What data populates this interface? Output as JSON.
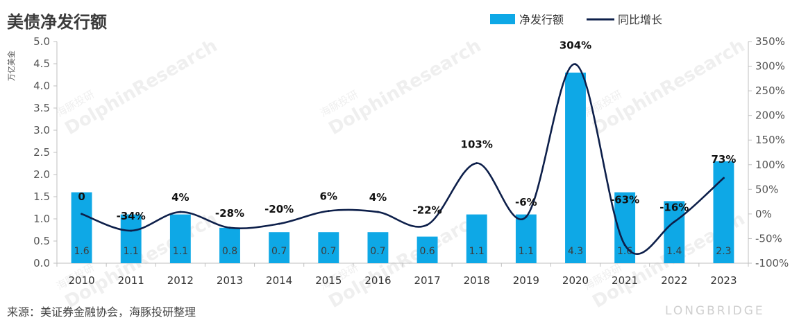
{
  "chart_data": {
    "type": "bar+line",
    "title": "美债净发行额",
    "ylabel": "万亿美金",
    "categories": [
      "2010",
      "2011",
      "2012",
      "2013",
      "2014",
      "2015",
      "2016",
      "2017",
      "2018",
      "2019",
      "2020",
      "2021",
      "2022",
      "2023"
    ],
    "series": [
      {
        "name": "净发行额",
        "type": "bar",
        "color": "#0ea8e6",
        "values": [
          1.6,
          1.1,
          1.1,
          0.8,
          0.7,
          0.7,
          0.7,
          0.6,
          1.1,
          1.1,
          4.3,
          1.6,
          1.4,
          2.3
        ],
        "labels": [
          "1.6",
          "1.1",
          "1.1",
          "0.8",
          "0.7",
          "0.7",
          "0.7",
          "0.6",
          "1.1",
          "1.1",
          "4.3",
          "1.6",
          "1.4",
          "2.3"
        ]
      },
      {
        "name": "同比增长",
        "type": "line",
        "color": "#0d1f4a",
        "values": [
          0,
          -34,
          4,
          -28,
          -20,
          6,
          4,
          -22,
          103,
          -6,
          304,
          -63,
          -16,
          73
        ],
        "labels": [
          "0",
          "-34%",
          "4%",
          "-28%",
          "-20%",
          "6%",
          "4%",
          "-22%",
          "103%",
          "-6%",
          "304%",
          "-63%",
          "-16%",
          "73%"
        ]
      }
    ],
    "y_left": {
      "ylim": [
        0,
        5
      ],
      "ticks": [
        "0.0",
        "0.5",
        "1.0",
        "1.5",
        "2.0",
        "2.5",
        "3.0",
        "3.5",
        "4.0",
        "4.5",
        "5.0"
      ]
    },
    "y_right": {
      "ylim": [
        -100,
        350
      ],
      "ticks": [
        "-100%",
        "-50%",
        "0%",
        "50%",
        "100%",
        "150%",
        "200%",
        "250%",
        "300%",
        "350%"
      ]
    },
    "legend": {
      "placement": "top-right"
    },
    "grid": false
  },
  "source": "来源：美证券金融协会，海豚投研整理",
  "watermark": {
    "cn": "海豚投研",
    "en": "DolphinResearch",
    "brand": "LONGBRIDGE"
  }
}
